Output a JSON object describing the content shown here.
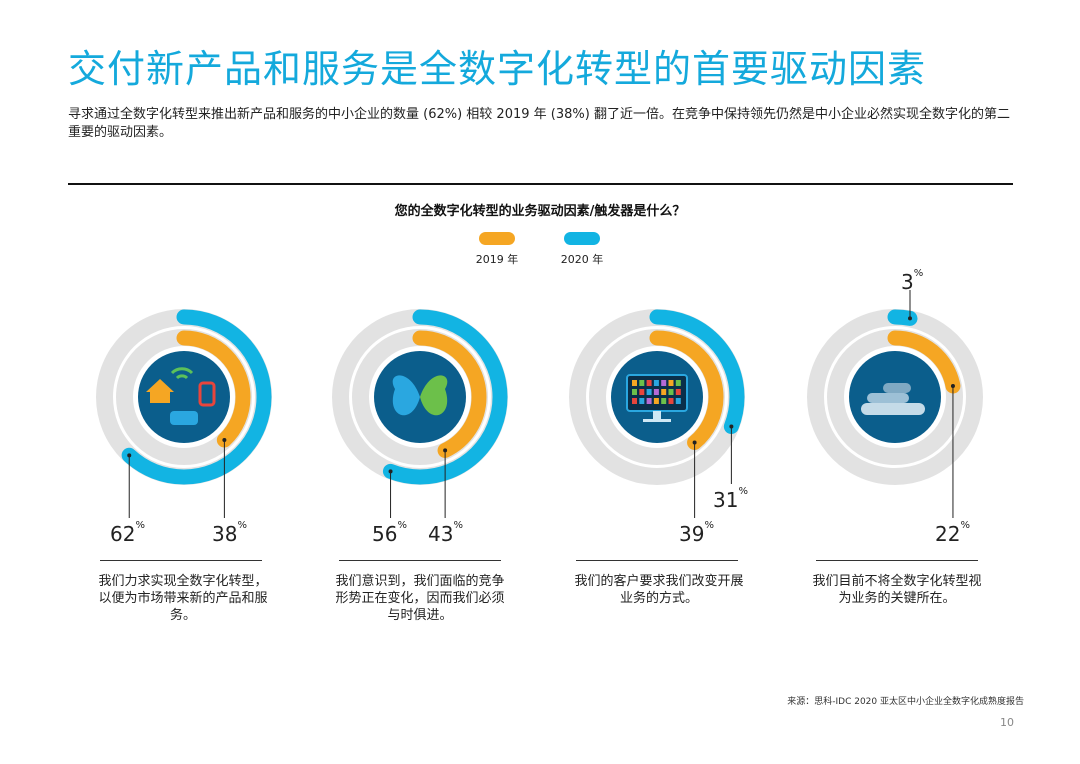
{
  "title": "交付新产品和服务是全数字化转型的首要驱动因素",
  "intro": "寻求通过全数字化转型来推出新产品和服务的中小企业的数量 (62%) 相较 2019 年 (38%) 翻了近一倍。在竞争中保持领先仍然是中小企业必然实现全数字化的第二重要的驱动因素。",
  "question": "您的全数字化转型的业务驱动因素/触发器是什么？",
  "legend": [
    {
      "label": "2019 年",
      "color": "#f5a623"
    },
    {
      "label": "2020 年",
      "color": "#12b4e3"
    }
  ],
  "colors": {
    "y2019": "#f5a623",
    "y2020": "#12b4e3",
    "track": "#e2e2e2",
    "icon_bg": "#0b5e8c"
  },
  "chart_data": {
    "type": "radial-bar",
    "series": [
      {
        "name": "2019 年",
        "values": [
          38,
          43,
          39,
          22
        ]
      },
      {
        "name": "2020 年",
        "values": [
          62,
          56,
          31,
          3
        ]
      }
    ],
    "items": [
      {
        "icon": "iot-devices-icon",
        "v2020": "62",
        "v2019": "38",
        "desc": "我们力求实现全数字化转型，以便为市场带来新的产品和服务。"
      },
      {
        "icon": "butterfly-icon",
        "v2020": "56",
        "v2019": "43",
        "desc": "我们意识到，我们面临的竞争形势正在变化，因而我们必须与时俱进。"
      },
      {
        "icon": "monitor-dashboard-icon",
        "v2020": "31",
        "v2019": "39",
        "desc": "我们的客户要求我们改变开展业务的方式。"
      },
      {
        "icon": "cloud-icon",
        "v2020": "3",
        "v2019": "22",
        "desc": "我们目前不将全数字化转型视为业务的关键所在。"
      }
    ],
    "unit": "%"
  },
  "source": "来源：思科-IDC 2020 亚太区中小企业全数字化成熟度报告",
  "page_number": "10"
}
